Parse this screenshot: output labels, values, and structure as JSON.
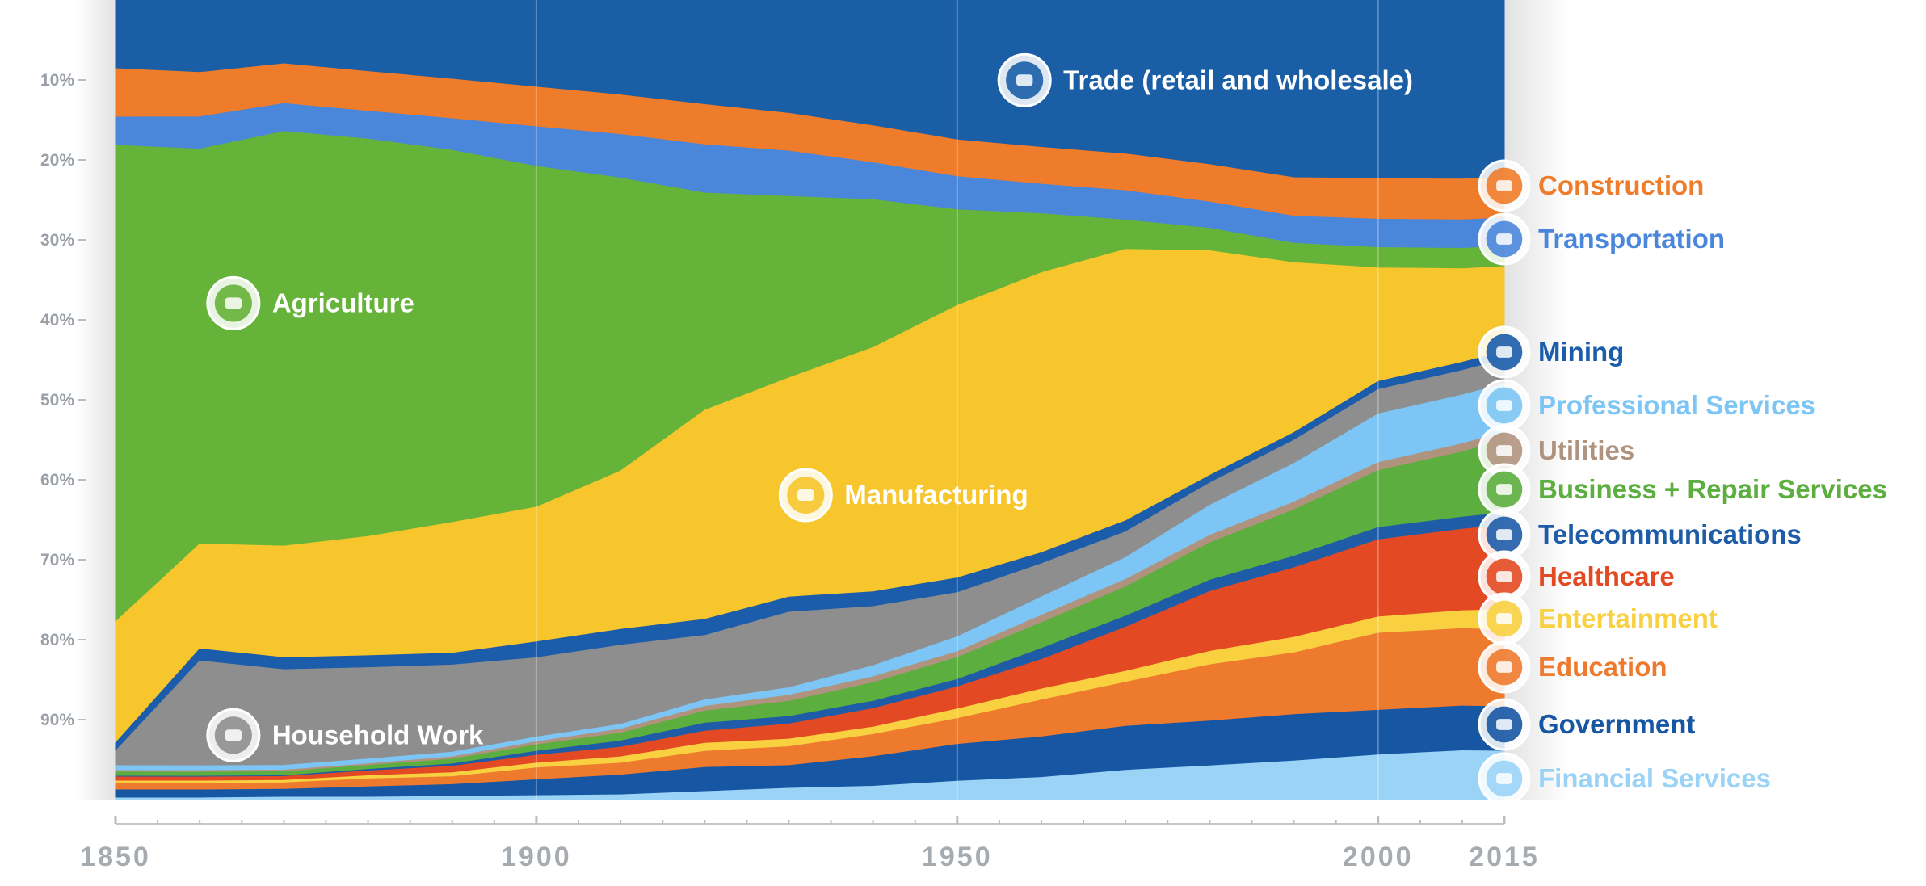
{
  "chart_data": {
    "type": "area",
    "stacked": true,
    "normalized": true,
    "x": [
      1850,
      1860,
      1870,
      1880,
      1890,
      1900,
      1910,
      1920,
      1930,
      1940,
      1950,
      1960,
      1970,
      1980,
      1990,
      2000,
      2010,
      2015
    ],
    "xlim": [
      1850,
      2015
    ],
    "ylim": [
      0,
      100
    ],
    "y_reversed": true,
    "x_ticks": [
      "1850",
      "1900",
      "1950",
      "2000",
      "2015"
    ],
    "x_tick_values": [
      1850,
      1900,
      1950,
      2000,
      2015
    ],
    "y_ticks": [
      "10%",
      "20%",
      "30%",
      "40%",
      "50%",
      "60%",
      "70%",
      "80%",
      "90%"
    ],
    "y_tick_values": [
      10,
      20,
      30,
      40,
      50,
      60,
      70,
      80,
      90
    ],
    "grid": {
      "vertical": true,
      "horizontal": false
    },
    "series": [
      {
        "name": "Trade (retail and wholesale)",
        "color": "#1a5ea6",
        "icon": "shopping-cart-icon",
        "label_position": "inside",
        "values": [
          8.5,
          9,
          8,
          9,
          10,
          11,
          12,
          13,
          15,
          17,
          19,
          20,
          21,
          22,
          23,
          22,
          22,
          22
        ]
      },
      {
        "name": "Construction",
        "color": "#ef7c2a",
        "icon": "hard-hat-icon",
        "label_position": "side",
        "values": [
          6,
          5.5,
          5,
          5,
          5,
          5,
          5,
          5,
          5,
          5,
          5,
          5,
          5,
          5,
          5,
          5,
          5,
          5
        ]
      },
      {
        "name": "Transportation",
        "color": "#4a86da",
        "icon": "truck-icon",
        "label_position": "side",
        "values": [
          3.5,
          4,
          3.5,
          3.5,
          4,
          5,
          5.5,
          6,
          6,
          5,
          4.5,
          4,
          4,
          3.5,
          3.5,
          3.5,
          3.5,
          3.5
        ]
      },
      {
        "name": "Agriculture",
        "color": "#66b33a",
        "icon": "wheat-icon",
        "label_position": "inside",
        "values": [
          59,
          49,
          52,
          50,
          47,
          43,
          37,
          27,
          24,
          20,
          13,
          8,
          4,
          3,
          2.5,
          2.5,
          2.5,
          2.5
        ]
      },
      {
        "name": "Manufacturing",
        "color": "#f7c52c",
        "icon": "factory-icon",
        "label_position": "inside",
        "values": [
          15,
          13,
          14,
          15,
          16.5,
          17,
          20,
          26,
          29,
          33,
          37,
          38,
          37,
          30,
          22,
          14,
          11.5,
          10.5
        ]
      },
      {
        "name": "Mining",
        "color": "#1b5cab",
        "icon": "pickaxe-icon",
        "label_position": "side",
        "values": [
          1,
          1.5,
          1.5,
          1.5,
          1.5,
          2,
          2,
          2,
          2,
          2,
          2,
          1.5,
          1.5,
          1,
          1,
          1,
          1,
          1
        ]
      },
      {
        "name": "Household Work",
        "color": "#8e8e8e",
        "icon": "house-icon",
        "label_position": "inside",
        "values": [
          1.8,
          13,
          12,
          11.5,
          11,
          10,
          10,
          8,
          10,
          8,
          6,
          4.5,
          3.5,
          3,
          3,
          3,
          3,
          3
        ]
      },
      {
        "name": "Professional Services",
        "color": "#7cc5f4",
        "icon": "briefcase-icon",
        "label_position": "side",
        "values": [
          0.6,
          0.6,
          0.6,
          0.6,
          0.6,
          0.6,
          0.6,
          0.8,
          1,
          1.5,
          2,
          2.5,
          3,
          4,
          5,
          6,
          6,
          6
        ]
      },
      {
        "name": "Utilities",
        "color": "#b0937e",
        "icon": "faucet-icon",
        "label_position": "side",
        "values": [
          0.2,
          0.2,
          0.2,
          0.2,
          0.3,
          0.4,
          0.5,
          0.6,
          0.8,
          0.8,
          0.8,
          1,
          1,
          1,
          1,
          1,
          1,
          1
        ]
      },
      {
        "name": "Business + Repair Services",
        "color": "#5cae3f",
        "icon": "tools-icon",
        "label_position": "side",
        "values": [
          0.5,
          0.5,
          0.5,
          0.5,
          0.6,
          0.8,
          1,
          1.5,
          2,
          2.5,
          3,
          3.5,
          4,
          5,
          6,
          7,
          8,
          9
        ]
      },
      {
        "name": "Telecommunications",
        "color": "#1f5ca8",
        "icon": "satellite-icon",
        "label_position": "side",
        "values": [
          0.1,
          0.1,
          0.1,
          0.2,
          0.3,
          0.5,
          0.8,
          1,
          1,
          1,
          1,
          1.5,
          1.5,
          1.5,
          1.5,
          1.5,
          1.5,
          1.5
        ]
      },
      {
        "name": "Healthcare",
        "color": "#e34a24",
        "icon": "medical-cross-icon",
        "label_position": "side",
        "values": [
          0.5,
          0.5,
          0.5,
          0.6,
          0.8,
          1,
          1.2,
          1.5,
          2,
          2.5,
          3,
          4,
          6,
          8,
          9,
          9.5,
          10,
          10.5
        ]
      },
      {
        "name": "Entertainment",
        "color": "#f8d040",
        "icon": "ticket-icon",
        "label_position": "side",
        "values": [
          0.3,
          0.3,
          0.3,
          0.4,
          0.5,
          0.6,
          0.8,
          1,
          1,
          1,
          1.3,
          1.5,
          1.5,
          1.8,
          2,
          2,
          2.2,
          2.5
        ]
      },
      {
        "name": "Education",
        "color": "#ee7a2e",
        "icon": "graduation-cap-icon",
        "label_position": "side",
        "values": [
          0.8,
          0.8,
          0.8,
          1,
          1,
          1.5,
          1.5,
          2,
          2.5,
          3,
          3.5,
          5,
          6,
          7.5,
          8,
          9.5,
          9.5,
          9.5
        ]
      },
      {
        "name": "Government",
        "color": "#1756a3",
        "icon": "government-building-icon",
        "label_position": "side",
        "values": [
          1,
          1,
          1,
          1.3,
          1.5,
          2,
          2.5,
          3,
          3,
          4,
          5,
          5.5,
          6,
          6,
          6,
          5.5,
          5.5,
          5.5
        ]
      },
      {
        "name": "Financial Services",
        "color": "#9bd3f7",
        "icon": "money-bag-icon",
        "label_position": "side",
        "values": [
          0.2,
          0.2,
          0.3,
          0.3,
          0.4,
          0.5,
          0.6,
          1,
          1.5,
          1.8,
          2.5,
          3,
          4,
          4.5,
          5,
          5.5,
          6,
          6
        ]
      }
    ]
  }
}
